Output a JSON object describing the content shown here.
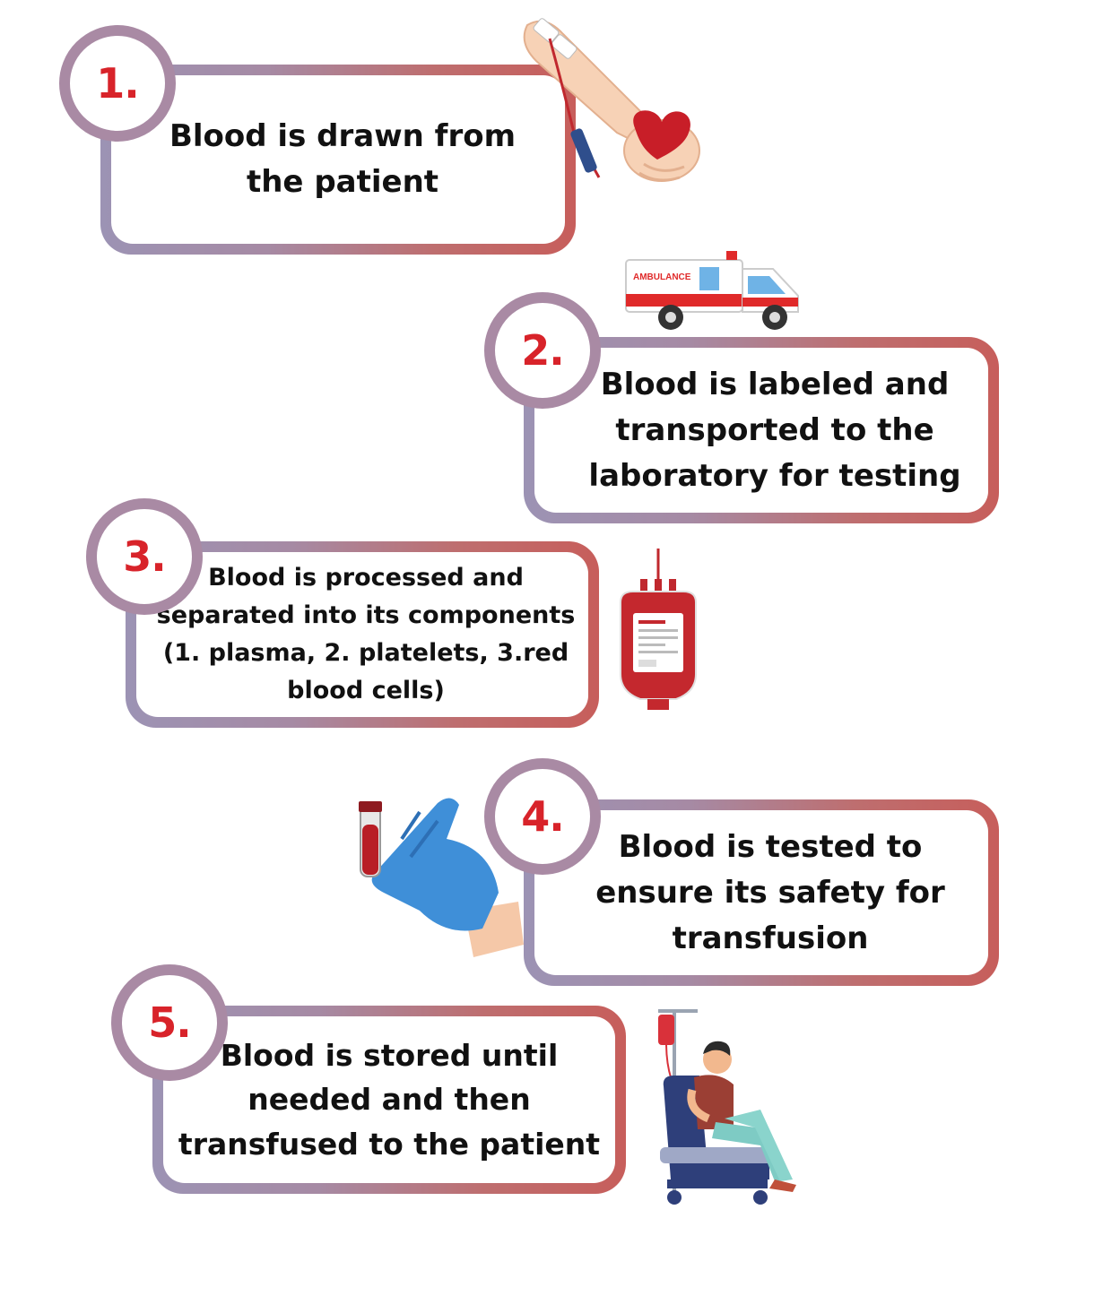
{
  "steps": [
    {
      "number": "1.",
      "text": "Blood is drawn from the patient"
    },
    {
      "number": "2.",
      "text": "Blood is labeled and transported to the laboratory for testing"
    },
    {
      "number": "3.",
      "text": "Blood is processed and separated into its components (1. plasma, 2. platelets, 3.red blood cells)"
    },
    {
      "number": "4.",
      "text": "Blood is tested to ensure its safety for transfusion"
    },
    {
      "number": "5.",
      "text": "Blood is stored until needed and then transfused to the patient"
    }
  ],
  "illustrations": {
    "step1": "arm-donating-blood-icon",
    "step2": "ambulance-icon",
    "step2_label": "AMBULANCE",
    "step3": "blood-bag-icon",
    "step4": "gloved-hand-test-tube-icon",
    "step5": "patient-transfusion-chair-icon"
  },
  "colors": {
    "number_red": "#D8232A",
    "frame_purple": "#9C93B4",
    "frame_red": "#C75E5B",
    "text": "#111111"
  }
}
